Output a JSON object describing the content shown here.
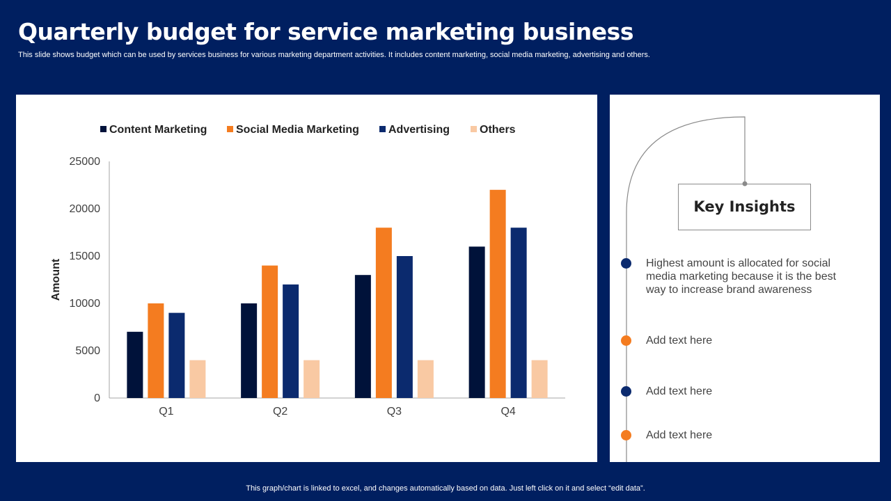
{
  "header": {
    "title": "Quarterly budget for service marketing business",
    "subtitle": "This slide shows budget which can be used by services business for various marketing department activities. It includes content marketing, social media marketing, advertising and others."
  },
  "chart_data": {
    "type": "bar",
    "categories": [
      "Q1",
      "Q2",
      "Q3",
      "Q4"
    ],
    "series": [
      {
        "name": "Content Marketing",
        "color": "#00123a",
        "values": [
          7000,
          10000,
          13000,
          16000
        ]
      },
      {
        "name": "Social Media Marketing",
        "color": "#f47c20",
        "values": [
          10000,
          14000,
          18000,
          22000
        ]
      },
      {
        "name": "Advertising",
        "color": "#0b2a6e",
        "values": [
          9000,
          12000,
          15000,
          18000
        ]
      },
      {
        "name": "Others",
        "color": "#f9c9a3",
        "values": [
          4000,
          4000,
          4000,
          4000
        ]
      }
    ],
    "title": "",
    "xlabel": "",
    "ylabel": "Amount",
    "ylim": [
      0,
      25000
    ],
    "yticks": [
      0,
      5000,
      10000,
      15000,
      20000,
      25000
    ],
    "legend": "top",
    "grid": false
  },
  "insights": {
    "heading": "Key Insights",
    "items": [
      {
        "text": "Highest amount is allocated for social media marketing because it is the best way to increase brand awareness",
        "color": "#0b2a6e"
      },
      {
        "text": "Add text here",
        "color": "#f47c20"
      },
      {
        "text": "Add text here",
        "color": "#0b2a6e"
      },
      {
        "text": "Add text here",
        "color": "#f47c20"
      }
    ]
  },
  "footer": {
    "note": "This graph/chart is linked to excel, and changes automatically based on data. Just left click on it and select “edit data”."
  }
}
